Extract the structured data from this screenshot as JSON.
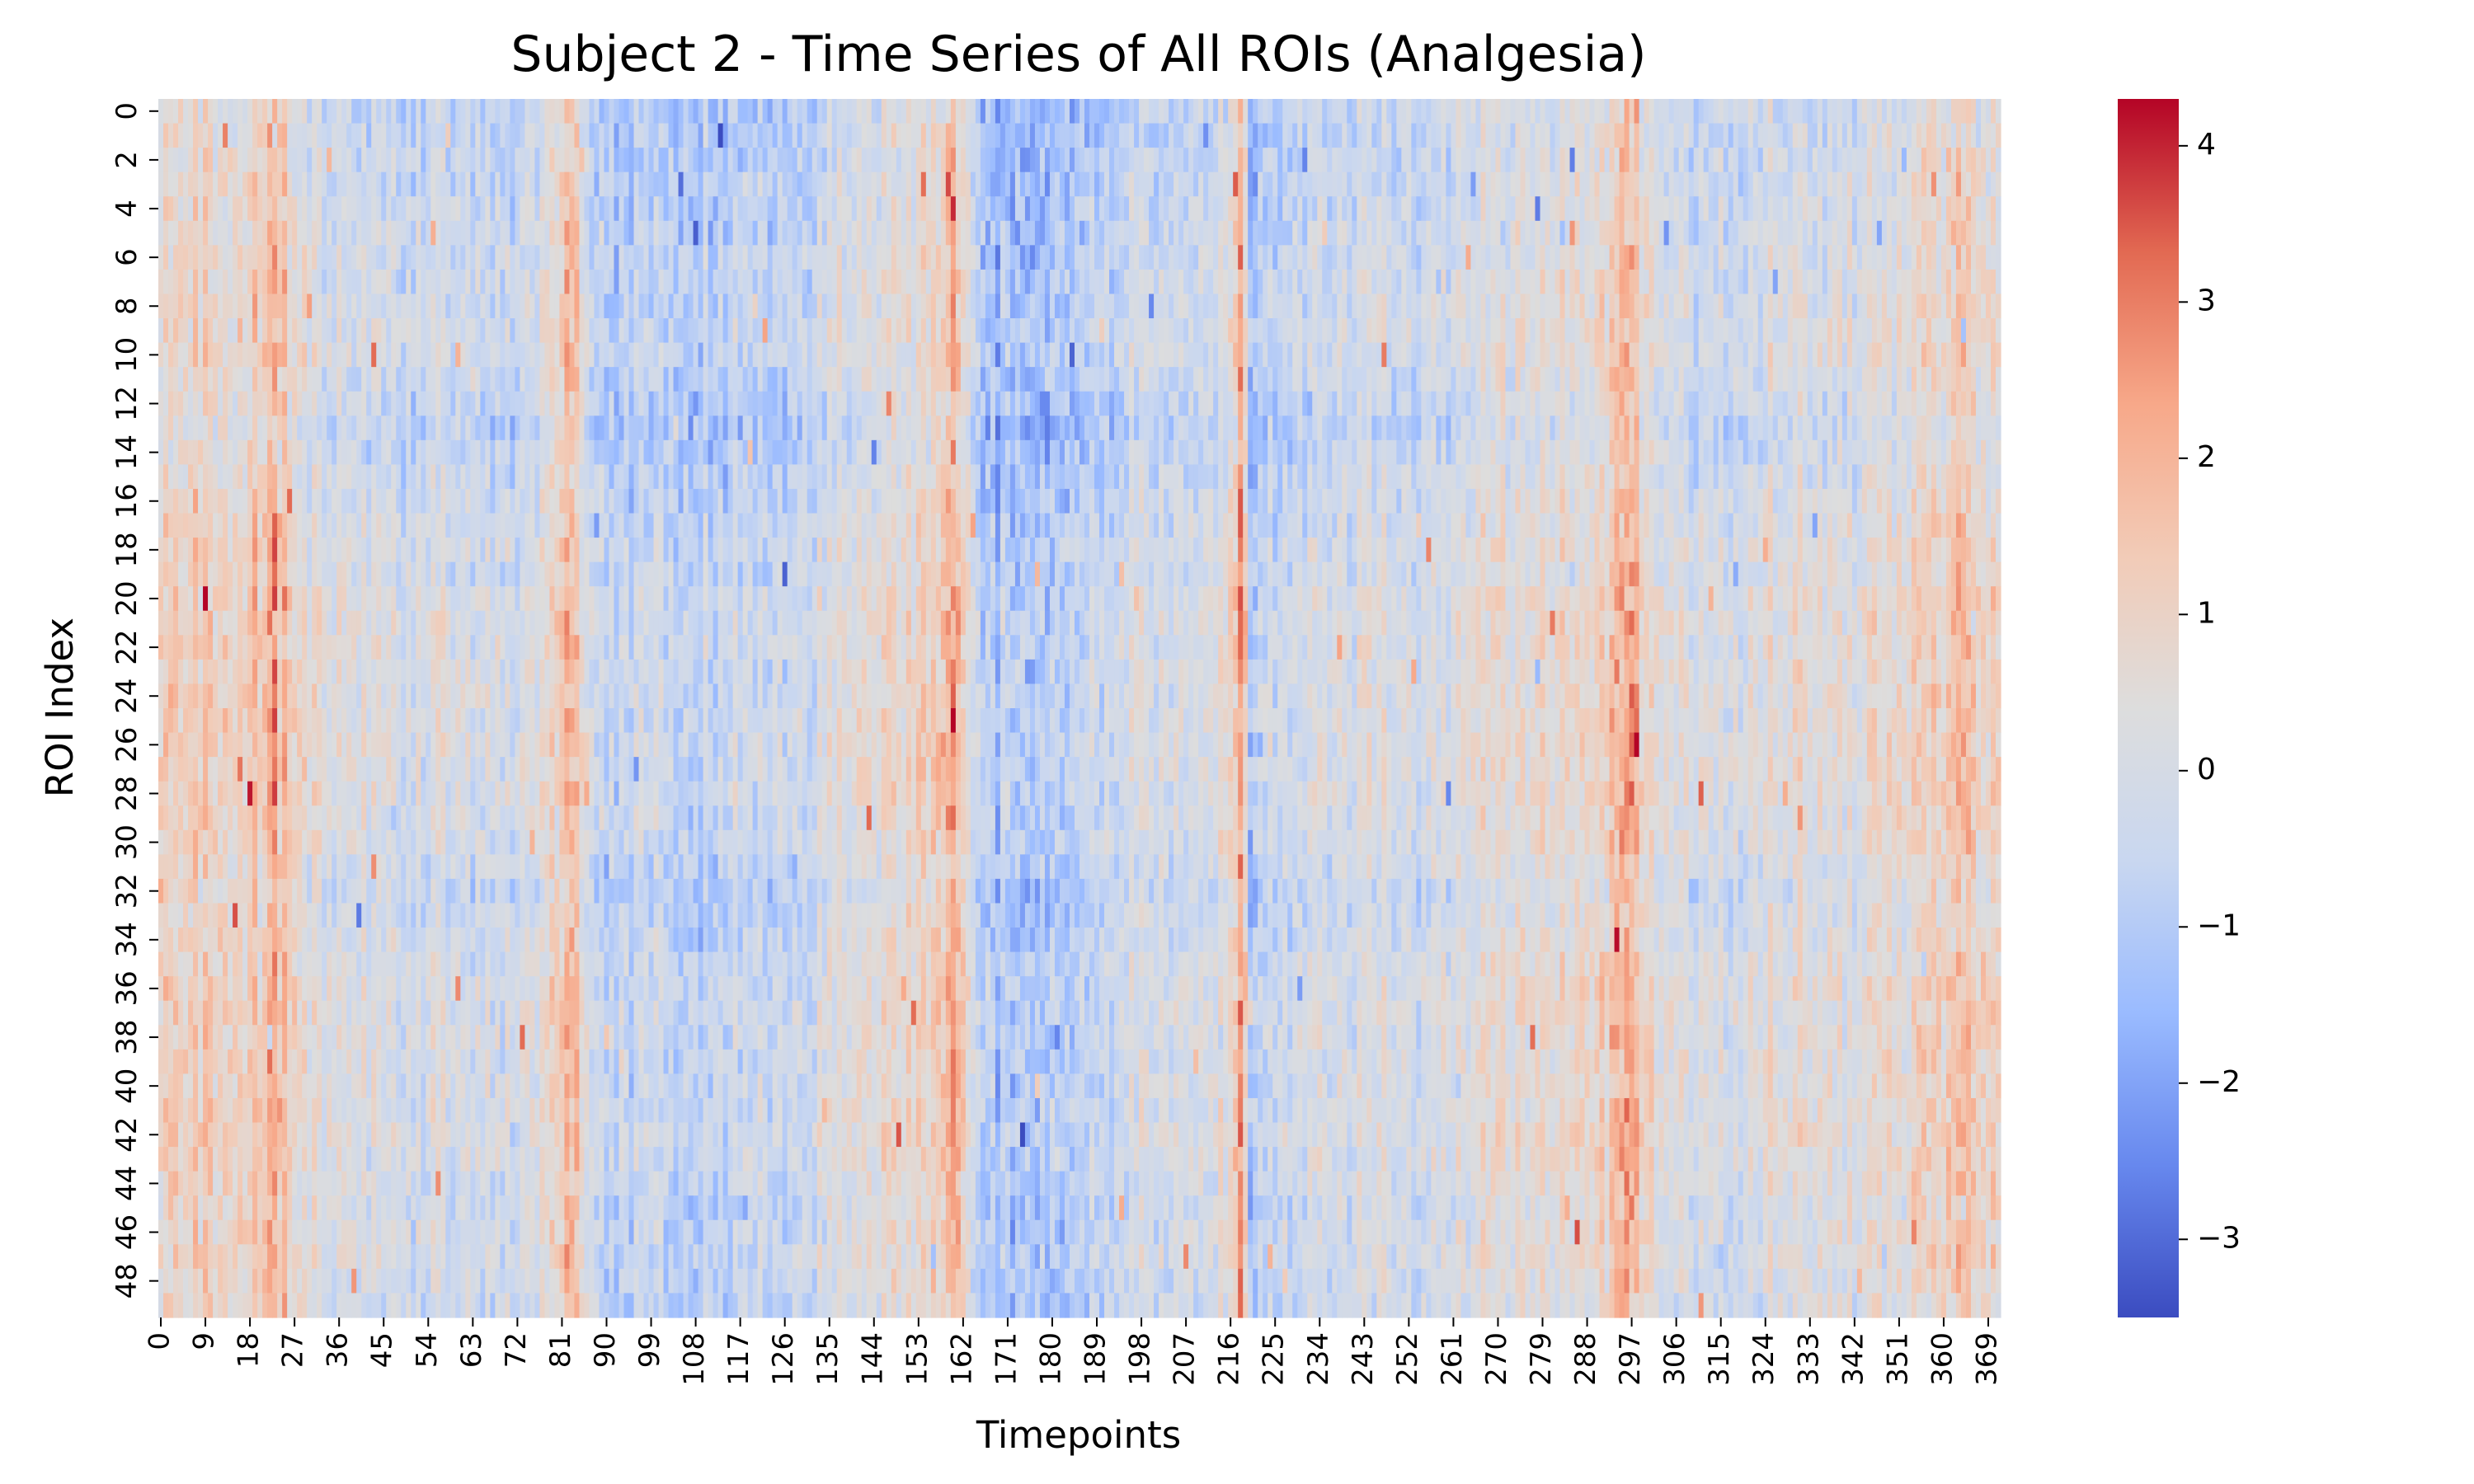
{
  "chart_data": {
    "type": "heatmap",
    "title": "Subject 2 - Time Series of All ROIs (Analgesia)",
    "xlabel": "Timepoints",
    "ylabel": "ROI Index",
    "n_rows": 50,
    "n_cols": 372,
    "x_ticks": [
      0,
      9,
      18,
      27,
      36,
      45,
      54,
      63,
      72,
      81,
      90,
      99,
      108,
      117,
      126,
      135,
      144,
      153,
      162,
      171,
      180,
      189,
      198,
      207,
      216,
      225,
      234,
      243,
      252,
      261,
      270,
      279,
      288,
      297,
      306,
      315,
      324,
      333,
      342,
      351,
      360,
      369
    ],
    "y_ticks": [
      0,
      2,
      4,
      6,
      8,
      10,
      12,
      14,
      16,
      18,
      20,
      22,
      24,
      26,
      28,
      30,
      32,
      34,
      36,
      38,
      40,
      42,
      44,
      46,
      48
    ],
    "colorbar": {
      "vmin": -3.5,
      "vmax": 4.3,
      "ticks": [
        -3,
        -2,
        -1,
        0,
        1,
        2,
        3,
        4
      ],
      "tick_labels": [
        "−3",
        "−2",
        "−1",
        "0",
        "1",
        "2",
        "3",
        "4"
      ],
      "colormap": "coolwarm",
      "color_stops": [
        "#3b4cc0",
        "#6788ee",
        "#9abbff",
        "#c9d7f0",
        "#dddddd",
        "#f2cbb7",
        "#f7a889",
        "#e26952",
        "#b40426"
      ]
    },
    "column_profile": [
      [
        0,
        0.6
      ],
      [
        2,
        1.4
      ],
      [
        4,
        1.0
      ],
      [
        7,
        1.2
      ],
      [
        10,
        1.1
      ],
      [
        14,
        1.0
      ],
      [
        17,
        0.9
      ],
      [
        19,
        1.5
      ],
      [
        21,
        1.3
      ],
      [
        23,
        2.2
      ],
      [
        25,
        1.6
      ],
      [
        27,
        0.9
      ],
      [
        30,
        0.3
      ],
      [
        35,
        -0.2
      ],
      [
        42,
        -0.3
      ],
      [
        50,
        -0.4
      ],
      [
        58,
        -0.3
      ],
      [
        66,
        -0.6
      ],
      [
        72,
        -0.4
      ],
      [
        76,
        0.0
      ],
      [
        80,
        1.1
      ],
      [
        82,
        1.8
      ],
      [
        84,
        1.3
      ],
      [
        86,
        0.3
      ],
      [
        88,
        -1.0
      ],
      [
        91,
        -1.1
      ],
      [
        96,
        -0.8
      ],
      [
        105,
        -0.9
      ],
      [
        112,
        -1.0
      ],
      [
        120,
        -0.6
      ],
      [
        126,
        -0.9
      ],
      [
        130,
        -0.8
      ],
      [
        134,
        0.0
      ],
      [
        138,
        0.2
      ],
      [
        145,
        0.2
      ],
      [
        150,
        0.6
      ],
      [
        154,
        0.7
      ],
      [
        158,
        1.5
      ],
      [
        160,
        2.0
      ],
      [
        162,
        1.3
      ],
      [
        164,
        -0.8
      ],
      [
        166,
        -1.6
      ],
      [
        172,
        -1.5
      ],
      [
        178,
        -1.6
      ],
      [
        184,
        -1.3
      ],
      [
        190,
        -0.9
      ],
      [
        196,
        -0.4
      ],
      [
        200,
        -0.2
      ],
      [
        206,
        -0.3
      ],
      [
        212,
        -0.1
      ],
      [
        216,
        0.6
      ],
      [
        218,
        2.3
      ],
      [
        219,
        1.5
      ],
      [
        220,
        -1.6
      ],
      [
        222,
        -1.2
      ],
      [
        226,
        -0.5
      ],
      [
        232,
        -0.6
      ],
      [
        240,
        -0.4
      ],
      [
        248,
        -0.2
      ],
      [
        256,
        -0.5
      ],
      [
        262,
        -0.1
      ],
      [
        268,
        0.4
      ],
      [
        276,
        0.3
      ],
      [
        284,
        0.6
      ],
      [
        290,
        0.7
      ],
      [
        294,
        1.6
      ],
      [
        296,
        2.4
      ],
      [
        298,
        1.7
      ],
      [
        300,
        0.5
      ],
      [
        304,
        -0.3
      ],
      [
        310,
        -0.2
      ],
      [
        318,
        -0.3
      ],
      [
        326,
        0.3
      ],
      [
        332,
        0.2
      ],
      [
        338,
        -0.1
      ],
      [
        344,
        0.3
      ],
      [
        350,
        0.5
      ],
      [
        356,
        0.7
      ],
      [
        360,
        1.2
      ],
      [
        362,
        1.9
      ],
      [
        364,
        1.5
      ],
      [
        366,
        1.0
      ],
      [
        371,
        0.8
      ]
    ],
    "row_profile": [
      [
        0,
        -0.5
      ],
      [
        5,
        -0.1
      ],
      [
        10,
        0.2
      ],
      [
        13,
        -0.6
      ],
      [
        16,
        0.0
      ],
      [
        18,
        0.3
      ],
      [
        19,
        0.1
      ],
      [
        20,
        0.6
      ],
      [
        24,
        0.5
      ],
      [
        26,
        0.6
      ],
      [
        30,
        0.4
      ],
      [
        32,
        -0.2
      ],
      [
        36,
        0.5
      ],
      [
        40,
        0.4
      ],
      [
        42,
        0.6
      ],
      [
        45,
        0.1
      ],
      [
        47,
        0.3
      ],
      [
        49,
        0.0
      ]
    ]
  }
}
